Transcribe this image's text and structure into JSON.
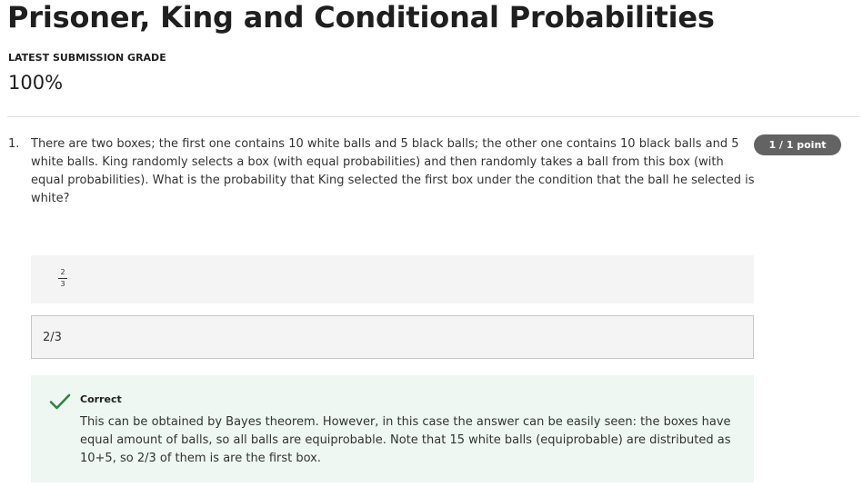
{
  "page": {
    "title": "Prisoner, King and Conditional Probabilities"
  },
  "grade": {
    "label": "LATEST SUBMISSION GRADE",
    "value": "100%"
  },
  "question": {
    "number": "1.",
    "text": "There are two boxes; the first one contains 10 white balls and 5 black balls; the other one contains 10 black balls and 5 white balls. King randomly selects a box (with equal probabilities) and then randomly takes a ball from this box (with equal probabilities). What is the probability that King selected the first box under the condition that the ball he selected is white?",
    "points": "1 / 1 point",
    "answer_preview": {
      "numerator": "2",
      "denominator": "3"
    },
    "answer_input_value": "2/3",
    "feedback": {
      "status": "Correct",
      "status_icon": "check-icon",
      "status_color": "#2e8540",
      "text": "This can be obtained by Bayes theorem. However, in this case the answer can be easily seen: the boxes have equal amount of balls, so all balls are equiprobable. Note that 15 white balls (equiprobable) are distributed as 10+5, so 2/3 of them is are the first box."
    }
  }
}
